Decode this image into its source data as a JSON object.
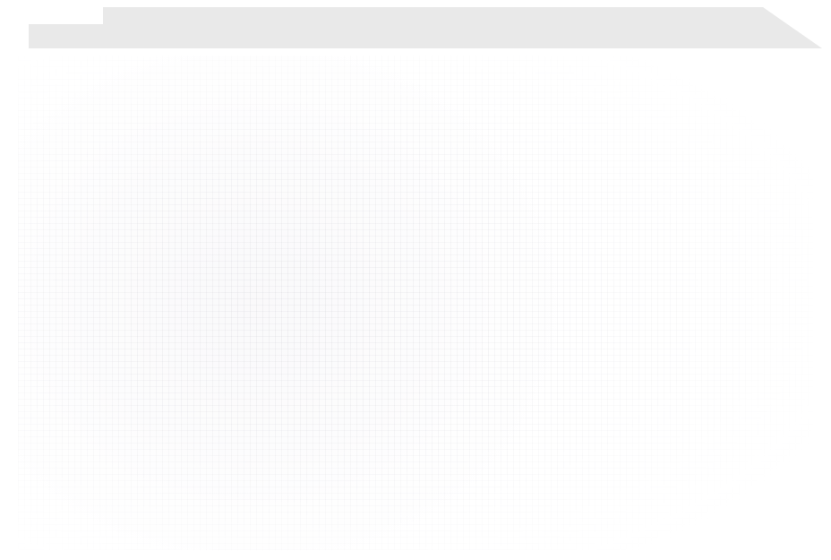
{
  "colors": {
    "page_background": "#ffffff",
    "tab_fill": "#e9e9e9",
    "content_texture": "#d9d7de"
  }
}
